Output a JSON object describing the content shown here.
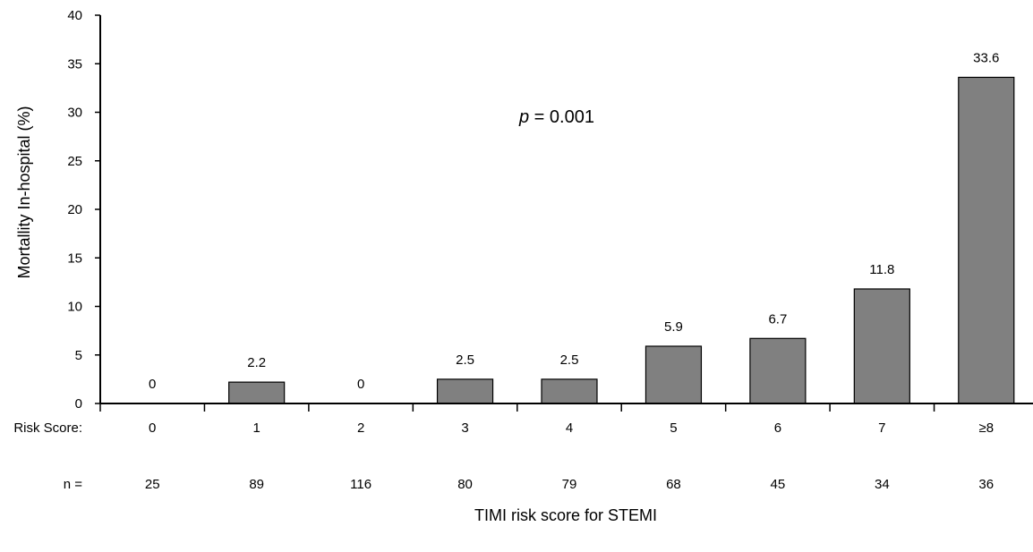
{
  "chart_data": {
    "type": "bar",
    "title": "",
    "xlabel": "TIMI risk score for STEMI",
    "ylabel": "Mortallity In-hospital (%)",
    "ylim": [
      0,
      40
    ],
    "yticks": [
      0,
      5,
      10,
      15,
      20,
      25,
      30,
      35,
      40
    ],
    "grid": false,
    "legend": "none",
    "row_labels": {
      "categories": "Risk Score:",
      "counts": "n ="
    },
    "categories": [
      "0",
      "1",
      "2",
      "3",
      "4",
      "5",
      "6",
      "7",
      "≥8"
    ],
    "values": [
      0,
      2.2,
      0,
      2.5,
      2.5,
      5.9,
      6.7,
      11.8,
      33.6
    ],
    "value_labels": [
      "0",
      "2.2",
      "0",
      "2.5",
      "2.5",
      "5.9",
      "6.7",
      "11.8",
      "33.6"
    ],
    "n": [
      "25",
      "89",
      "116",
      "80",
      "79",
      "68",
      "45",
      "34",
      "36"
    ],
    "annotation": {
      "italic": "p",
      "text": " = 0.001"
    },
    "colors": {
      "bar_fill": "#808080",
      "bar_stroke": "#000000",
      "axis": "#000000"
    }
  }
}
